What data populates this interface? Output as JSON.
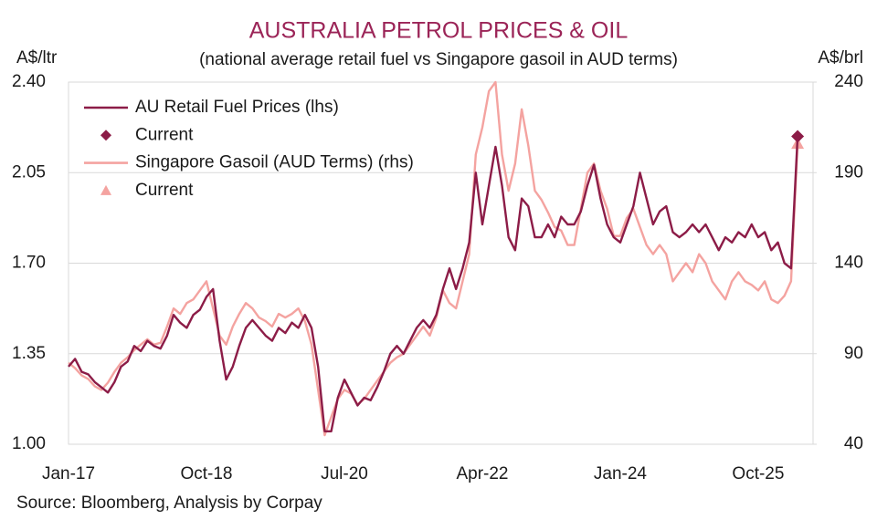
{
  "chart_data": {
    "type": "line",
    "title": "AUSTRALIA PETROL PRICES & OIL",
    "subtitle": "(national average retail fuel vs Singapore gasoil in AUD terms)",
    "ylabel": "A$/ltr",
    "y2label": "A$/brl",
    "source": "Source: Bloomberg, Analysis by Corpay",
    "title_color": "#9b2457",
    "grid": true,
    "x": [
      "Jan-17",
      "Feb-17",
      "Mar-17",
      "Apr-17",
      "May-17",
      "Jun-17",
      "Jul-17",
      "Aug-17",
      "Sep-17",
      "Oct-17",
      "Nov-17",
      "Dec-17",
      "Jan-18",
      "Feb-18",
      "Mar-18",
      "Apr-18",
      "May-18",
      "Jun-18",
      "Jul-18",
      "Aug-18",
      "Sep-18",
      "Oct-18",
      "Nov-18",
      "Dec-18",
      "Jan-19",
      "Feb-19",
      "Mar-19",
      "Apr-19",
      "May-19",
      "Jun-19",
      "Jul-19",
      "Aug-19",
      "Sep-19",
      "Oct-19",
      "Nov-19",
      "Dec-19",
      "Jan-20",
      "Feb-20",
      "Mar-20",
      "Apr-20",
      "May-20",
      "Jun-20",
      "Jul-20",
      "Aug-20",
      "Sep-20",
      "Oct-20",
      "Nov-20",
      "Dec-20",
      "Jan-21",
      "Feb-21",
      "Mar-21",
      "Apr-21",
      "May-21",
      "Jun-21",
      "Jul-21",
      "Aug-21",
      "Sep-21",
      "Oct-21",
      "Nov-21",
      "Dec-21",
      "Jan-22",
      "Feb-22",
      "Mar-22",
      "Apr-22",
      "May-22",
      "Jun-22",
      "Jul-22",
      "Aug-22",
      "Sep-22",
      "Oct-22",
      "Nov-22",
      "Dec-22",
      "Jan-23",
      "Feb-23",
      "Mar-23",
      "Apr-23",
      "May-23",
      "Jun-23",
      "Jul-23",
      "Aug-23",
      "Sep-23",
      "Oct-23",
      "Nov-23",
      "Dec-23",
      "Jan-24",
      "Feb-24",
      "Mar-24",
      "Apr-24",
      "May-24",
      "Jun-24",
      "Jul-24",
      "Aug-24",
      "Sep-24",
      "Oct-24",
      "Nov-24",
      "Dec-24",
      "Jan-25",
      "Feb-25",
      "Mar-25",
      "Apr-25",
      "May-25",
      "Jun-25",
      "Jul-25",
      "Aug-25",
      "Sep-25",
      "Oct-25",
      "Nov-25",
      "Dec-25",
      "Jan-26",
      "Feb-26",
      "Mar-26",
      "Apr-26"
    ],
    "xticks": [
      "Jan-17",
      "Oct-18",
      "Jul-20",
      "Apr-22",
      "Jan-24",
      "Oct-25"
    ],
    "ylim": [
      1.0,
      2.4
    ],
    "yticks": [
      {
        "value": 1.0,
        "label": "1.00"
      },
      1.35,
      {
        "value": 1.7,
        "label": "1.70"
      },
      2.05,
      {
        "value": 2.4,
        "label": "2.40"
      }
    ],
    "y2lim": [
      40,
      240
    ],
    "y2ticks": [
      40,
      90,
      140,
      190,
      240
    ],
    "series": [
      {
        "name": "AU Retail Fuel Prices (lhs)",
        "color": "#8c1c47",
        "axis": "y",
        "values": [
          1.3,
          1.33,
          1.28,
          1.27,
          1.24,
          1.22,
          1.2,
          1.24,
          1.3,
          1.32,
          1.38,
          1.36,
          1.4,
          1.38,
          1.37,
          1.42,
          1.5,
          1.47,
          1.45,
          1.5,
          1.52,
          1.57,
          1.6,
          1.4,
          1.25,
          1.3,
          1.38,
          1.45,
          1.48,
          1.45,
          1.42,
          1.4,
          1.45,
          1.43,
          1.47,
          1.45,
          1.5,
          1.45,
          1.3,
          1.05,
          1.05,
          1.18,
          1.25,
          1.2,
          1.15,
          1.18,
          1.17,
          1.22,
          1.28,
          1.35,
          1.38,
          1.35,
          1.4,
          1.45,
          1.48,
          1.45,
          1.5,
          1.6,
          1.68,
          1.6,
          1.68,
          1.78,
          2.05,
          1.85,
          2.0,
          2.15,
          2.0,
          1.8,
          1.75,
          1.95,
          1.92,
          1.8,
          1.8,
          1.85,
          1.8,
          1.88,
          1.85,
          1.85,
          1.9,
          2.0,
          2.08,
          1.95,
          1.85,
          1.8,
          1.78,
          1.85,
          1.92,
          2.05,
          1.95,
          1.85,
          1.9,
          1.92,
          1.82,
          1.8,
          1.82,
          1.85,
          1.82,
          1.85,
          1.8,
          1.75,
          1.8,
          1.78,
          1.82,
          1.8,
          1.85,
          1.8,
          1.82,
          1.75,
          1.78,
          1.7,
          1.68,
          2.19
        ]
      },
      {
        "name": "Current",
        "color": "#8c1c47",
        "axis": "y",
        "marker": "diamond",
        "x": [
          "Apr-26"
        ],
        "values": [
          2.19
        ]
      },
      {
        "name": "Singapore Gasoil (AUD Terms) (rhs)",
        "color": "#f4a3a0",
        "axis": "y2",
        "values": [
          85,
          82,
          78,
          76,
          72,
          70,
          74,
          80,
          85,
          88,
          92,
          95,
          98,
          95,
          96,
          105,
          115,
          112,
          118,
          120,
          125,
          130,
          115,
          100,
          95,
          105,
          112,
          118,
          115,
          110,
          108,
          105,
          112,
          110,
          112,
          115,
          108,
          95,
          70,
          45,
          55,
          65,
          70,
          68,
          62,
          65,
          70,
          75,
          80,
          85,
          88,
          90,
          95,
          100,
          105,
          100,
          110,
          125,
          118,
          115,
          130,
          145,
          200,
          215,
          235,
          240,
          200,
          180,
          195,
          225,
          205,
          180,
          175,
          168,
          160,
          158,
          150,
          150,
          170,
          190,
          195,
          180,
          170,
          155,
          155,
          165,
          170,
          160,
          150,
          145,
          150,
          145,
          130,
          135,
          140,
          135,
          145,
          140,
          130,
          125,
          120,
          130,
          135,
          130,
          128,
          125,
          130,
          120,
          118,
          122,
          130,
          206
        ]
      },
      {
        "name": "Current",
        "color": "#f4a3a0",
        "axis": "y2",
        "marker": "triangle",
        "x": [
          "Apr-26"
        ],
        "values": [
          206
        ]
      }
    ]
  }
}
